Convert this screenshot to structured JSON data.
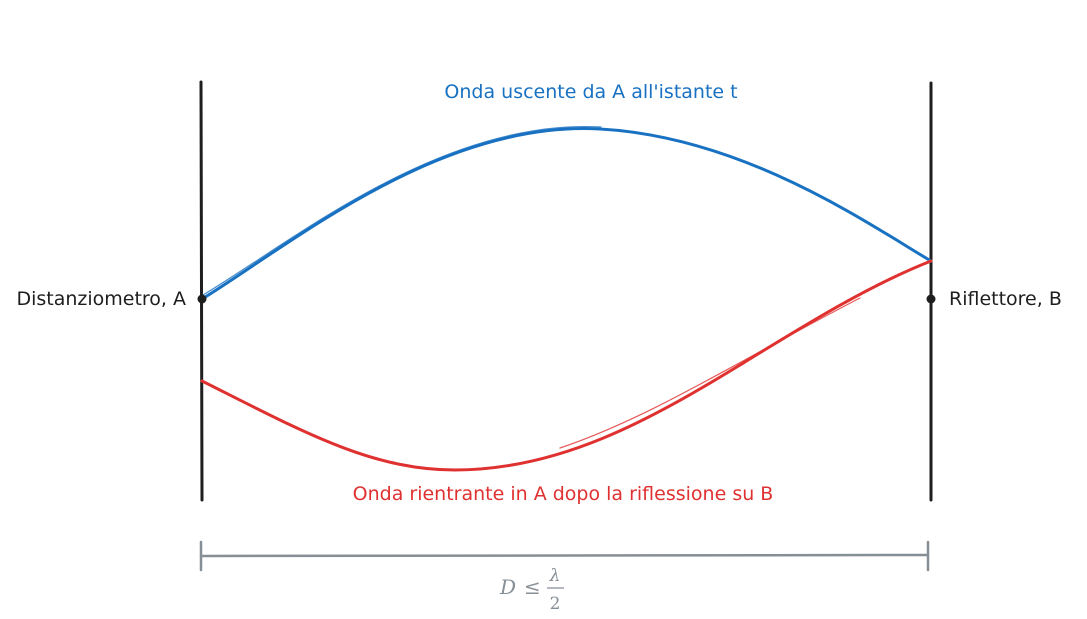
{
  "diagram": {
    "outgoing_wave": {
      "label": "Onda uscente da A all'istante t",
      "color": "#1971c2"
    },
    "returning_wave": {
      "label": "Onda rientrante in A dopo la riflessione su B",
      "color": "#e03131"
    },
    "left_endpoint": {
      "label": "Distanziometro, A"
    },
    "right_endpoint": {
      "label": "Riflettore, B"
    },
    "distance": {
      "lhs": "D",
      "relation": "≤",
      "numerator": "λ",
      "denominator": "2",
      "color": "#868e96"
    }
  }
}
